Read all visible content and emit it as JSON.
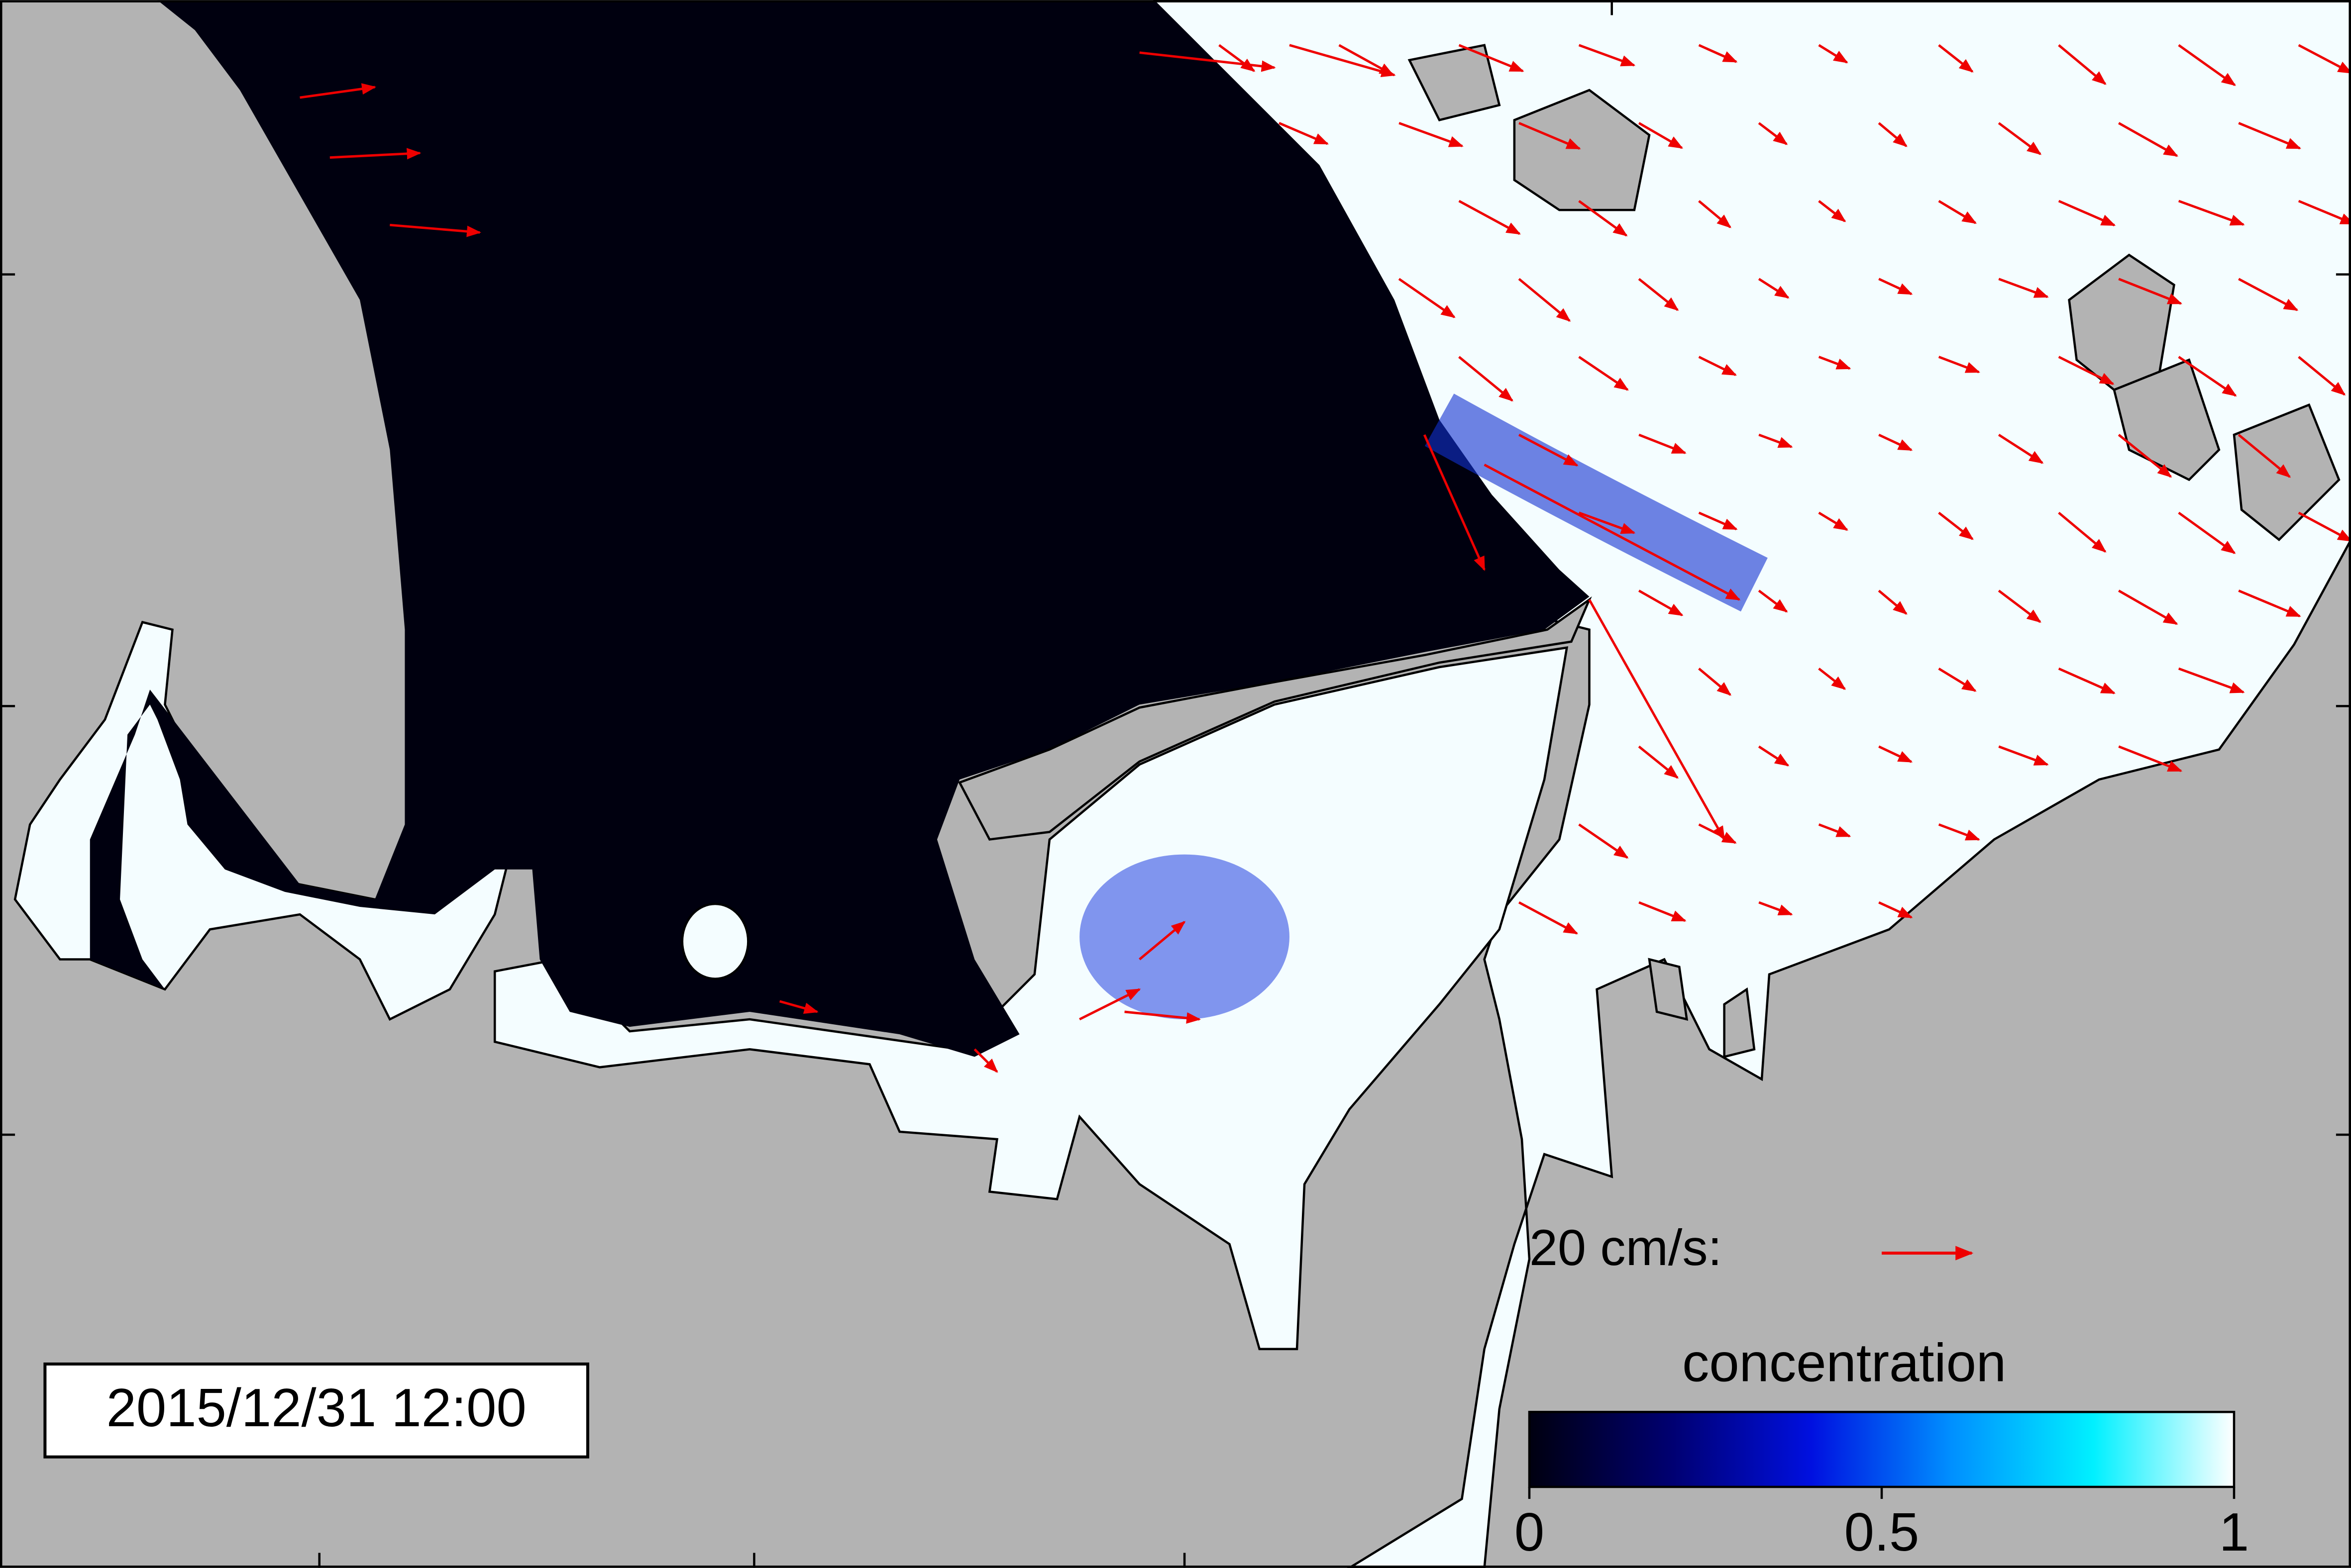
{
  "timestamp": "2015/12/31 12:00",
  "velocity_scale": "20 cm/s:",
  "colorbar": {
    "title": "concentration",
    "lim": [
      0,
      1
    ],
    "ticks": [
      0,
      0.5,
      1
    ]
  }
}
